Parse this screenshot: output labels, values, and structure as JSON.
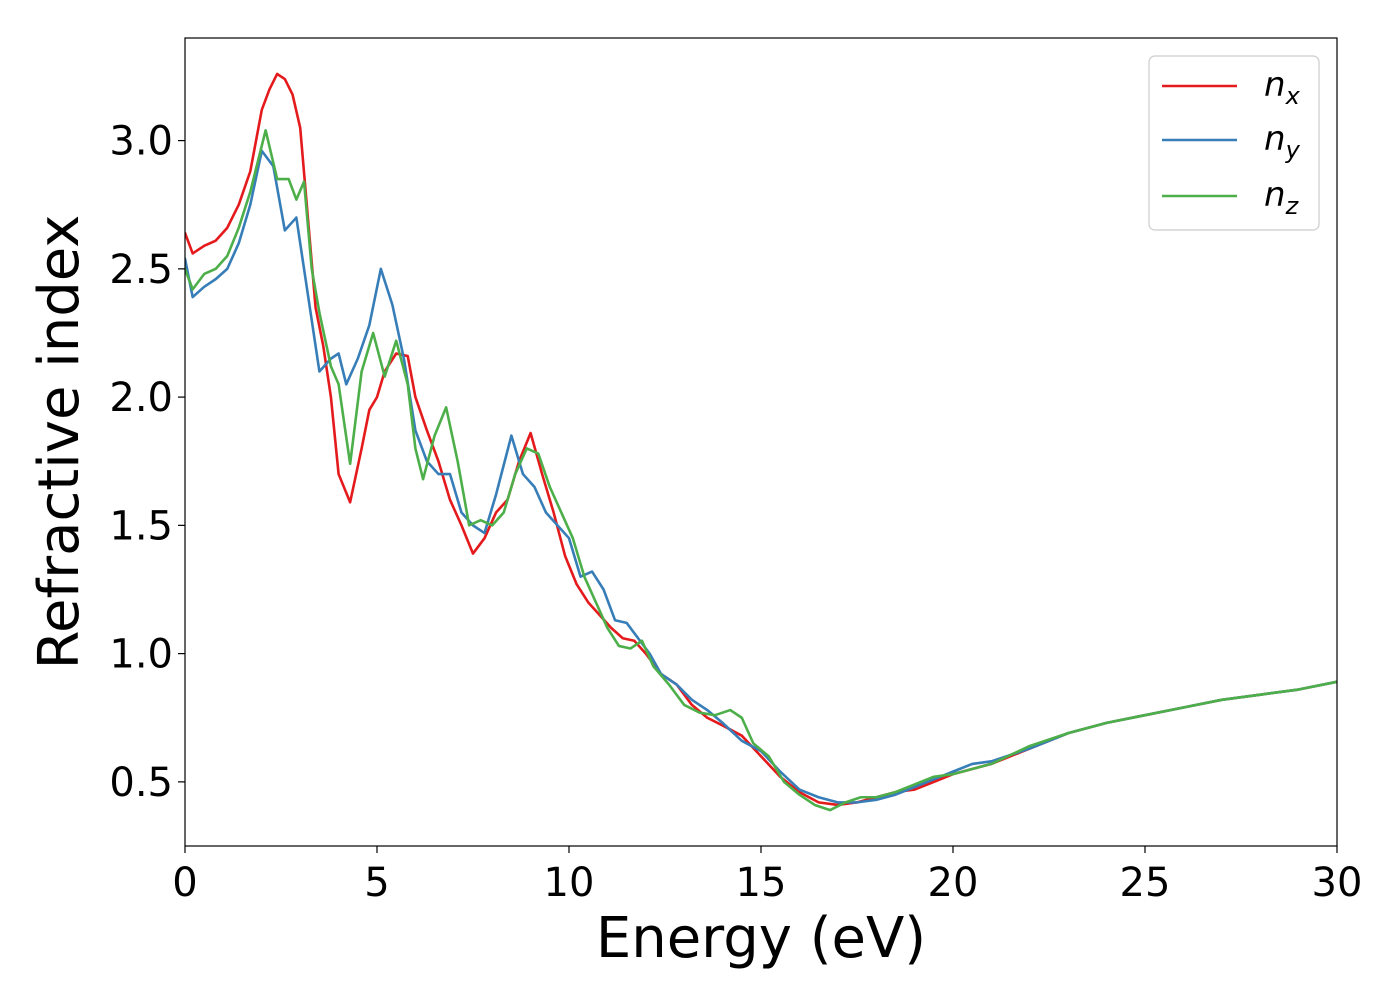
{
  "chart_data": {
    "type": "line",
    "xlabel": "Energy (eV)",
    "ylabel": "Refractive index",
    "xlim": [
      0,
      30
    ],
    "ylim": [
      0.25,
      3.4
    ],
    "xticks": [
      0,
      5,
      10,
      15,
      20,
      25,
      30
    ],
    "xtick_labels": [
      "0",
      "5",
      "10",
      "15",
      "20",
      "25",
      "30"
    ],
    "yticks": [
      0.5,
      1.0,
      1.5,
      2.0,
      2.5,
      3.0
    ],
    "ytick_labels": [
      "0.5",
      "1.0",
      "1.5",
      "2.0",
      "2.5",
      "3.0"
    ],
    "grid": false,
    "legend_position": "top-right",
    "series": [
      {
        "name": "n",
        "subscript": "x",
        "color": "#e41a1c",
        "points": [
          [
            0,
            2.64
          ],
          [
            0.2,
            2.56
          ],
          [
            0.5,
            2.59
          ],
          [
            0.8,
            2.61
          ],
          [
            1.1,
            2.66
          ],
          [
            1.4,
            2.75
          ],
          [
            1.7,
            2.88
          ],
          [
            2.0,
            3.12
          ],
          [
            2.2,
            3.2
          ],
          [
            2.4,
            3.26
          ],
          [
            2.6,
            3.24
          ],
          [
            2.8,
            3.18
          ],
          [
            3.0,
            3.05
          ],
          [
            3.2,
            2.7
          ],
          [
            3.4,
            2.35
          ],
          [
            3.6,
            2.2
          ],
          [
            3.8,
            2.0
          ],
          [
            4.0,
            1.7
          ],
          [
            4.3,
            1.59
          ],
          [
            4.6,
            1.8
          ],
          [
            4.8,
            1.95
          ],
          [
            5.0,
            2.0
          ],
          [
            5.2,
            2.1
          ],
          [
            5.5,
            2.17
          ],
          [
            5.8,
            2.16
          ],
          [
            6.0,
            2.0
          ],
          [
            6.3,
            1.87
          ],
          [
            6.6,
            1.75
          ],
          [
            6.9,
            1.6
          ],
          [
            7.2,
            1.5
          ],
          [
            7.5,
            1.39
          ],
          [
            7.8,
            1.45
          ],
          [
            8.1,
            1.55
          ],
          [
            8.4,
            1.6
          ],
          [
            8.7,
            1.75
          ],
          [
            9.0,
            1.86
          ],
          [
            9.3,
            1.7
          ],
          [
            9.6,
            1.55
          ],
          [
            9.9,
            1.38
          ],
          [
            10.2,
            1.27
          ],
          [
            10.5,
            1.2
          ],
          [
            10.8,
            1.15
          ],
          [
            11.1,
            1.1
          ],
          [
            11.4,
            1.06
          ],
          [
            11.7,
            1.05
          ],
          [
            12.0,
            1.0
          ],
          [
            12.4,
            0.92
          ],
          [
            12.8,
            0.88
          ],
          [
            13.2,
            0.8
          ],
          [
            13.6,
            0.75
          ],
          [
            14.0,
            0.72
          ],
          [
            14.5,
            0.68
          ],
          [
            15.0,
            0.6
          ],
          [
            15.5,
            0.52
          ],
          [
            16.0,
            0.46
          ],
          [
            16.5,
            0.42
          ],
          [
            17.0,
            0.41
          ],
          [
            17.5,
            0.42
          ],
          [
            18.0,
            0.44
          ],
          [
            18.5,
            0.46
          ],
          [
            19.0,
            0.47
          ],
          [
            19.5,
            0.5
          ],
          [
            20.0,
            0.53
          ],
          [
            20.5,
            0.55
          ],
          [
            21.0,
            0.57
          ],
          [
            22.0,
            0.63
          ],
          [
            23.0,
            0.69
          ],
          [
            24.0,
            0.73
          ],
          [
            25.0,
            0.76
          ],
          [
            26.0,
            0.79
          ],
          [
            27.0,
            0.82
          ],
          [
            28.0,
            0.84
          ],
          [
            29.0,
            0.86
          ],
          [
            30.0,
            0.89
          ]
        ]
      },
      {
        "name": "n",
        "subscript": "y",
        "color": "#377eb8",
        "points": [
          [
            0,
            2.54
          ],
          [
            0.2,
            2.39
          ],
          [
            0.5,
            2.43
          ],
          [
            0.8,
            2.46
          ],
          [
            1.1,
            2.5
          ],
          [
            1.4,
            2.6
          ],
          [
            1.7,
            2.75
          ],
          [
            2.0,
            2.96
          ],
          [
            2.3,
            2.9
          ],
          [
            2.6,
            2.65
          ],
          [
            2.9,
            2.7
          ],
          [
            3.2,
            2.4
          ],
          [
            3.5,
            2.1
          ],
          [
            3.8,
            2.15
          ],
          [
            4.0,
            2.17
          ],
          [
            4.2,
            2.05
          ],
          [
            4.5,
            2.15
          ],
          [
            4.8,
            2.28
          ],
          [
            5.1,
            2.5
          ],
          [
            5.4,
            2.36
          ],
          [
            5.7,
            2.15
          ],
          [
            6.0,
            1.87
          ],
          [
            6.3,
            1.75
          ],
          [
            6.6,
            1.7
          ],
          [
            6.9,
            1.7
          ],
          [
            7.2,
            1.55
          ],
          [
            7.5,
            1.5
          ],
          [
            7.8,
            1.47
          ],
          [
            8.1,
            1.62
          ],
          [
            8.5,
            1.85
          ],
          [
            8.8,
            1.7
          ],
          [
            9.1,
            1.65
          ],
          [
            9.4,
            1.55
          ],
          [
            9.7,
            1.5
          ],
          [
            10.0,
            1.45
          ],
          [
            10.3,
            1.3
          ],
          [
            10.6,
            1.32
          ],
          [
            10.9,
            1.25
          ],
          [
            11.2,
            1.13
          ],
          [
            11.5,
            1.12
          ],
          [
            11.8,
            1.06
          ],
          [
            12.1,
            1.0
          ],
          [
            12.4,
            0.92
          ],
          [
            12.8,
            0.88
          ],
          [
            13.2,
            0.82
          ],
          [
            13.6,
            0.78
          ],
          [
            14.0,
            0.73
          ],
          [
            14.5,
            0.66
          ],
          [
            15.0,
            0.62
          ],
          [
            15.5,
            0.54
          ],
          [
            16.0,
            0.47
          ],
          [
            16.5,
            0.44
          ],
          [
            17.0,
            0.42
          ],
          [
            17.5,
            0.42
          ],
          [
            18.0,
            0.43
          ],
          [
            18.5,
            0.45
          ],
          [
            19.0,
            0.48
          ],
          [
            19.5,
            0.51
          ],
          [
            20.0,
            0.54
          ],
          [
            20.5,
            0.57
          ],
          [
            21.0,
            0.58
          ],
          [
            22.0,
            0.63
          ],
          [
            23.0,
            0.69
          ],
          [
            24.0,
            0.73
          ],
          [
            25.0,
            0.76
          ],
          [
            26.0,
            0.79
          ],
          [
            27.0,
            0.82
          ],
          [
            28.0,
            0.84
          ],
          [
            29.0,
            0.86
          ],
          [
            30.0,
            0.89
          ]
        ]
      },
      {
        "name": "n",
        "subscript": "z",
        "color": "#4daf4a",
        "points": [
          [
            0,
            2.5
          ],
          [
            0.2,
            2.42
          ],
          [
            0.5,
            2.48
          ],
          [
            0.8,
            2.5
          ],
          [
            1.1,
            2.55
          ],
          [
            1.4,
            2.66
          ],
          [
            1.7,
            2.8
          ],
          [
            2.1,
            3.04
          ],
          [
            2.4,
            2.85
          ],
          [
            2.7,
            2.85
          ],
          [
            2.9,
            2.77
          ],
          [
            3.1,
            2.84
          ],
          [
            3.3,
            2.5
          ],
          [
            3.5,
            2.33
          ],
          [
            3.8,
            2.12
          ],
          [
            4.0,
            2.05
          ],
          [
            4.3,
            1.74
          ],
          [
            4.6,
            2.1
          ],
          [
            4.9,
            2.25
          ],
          [
            5.2,
            2.08
          ],
          [
            5.5,
            2.22
          ],
          [
            5.8,
            2.05
          ],
          [
            6.0,
            1.8
          ],
          [
            6.2,
            1.68
          ],
          [
            6.5,
            1.85
          ],
          [
            6.8,
            1.96
          ],
          [
            7.1,
            1.75
          ],
          [
            7.4,
            1.5
          ],
          [
            7.7,
            1.52
          ],
          [
            8.0,
            1.5
          ],
          [
            8.3,
            1.55
          ],
          [
            8.6,
            1.7
          ],
          [
            8.9,
            1.8
          ],
          [
            9.2,
            1.78
          ],
          [
            9.5,
            1.65
          ],
          [
            9.8,
            1.55
          ],
          [
            10.1,
            1.45
          ],
          [
            10.4,
            1.3
          ],
          [
            10.7,
            1.2
          ],
          [
            11.0,
            1.1
          ],
          [
            11.3,
            1.03
          ],
          [
            11.6,
            1.02
          ],
          [
            11.9,
            1.05
          ],
          [
            12.2,
            0.95
          ],
          [
            12.6,
            0.88
          ],
          [
            13.0,
            0.8
          ],
          [
            13.4,
            0.77
          ],
          [
            13.8,
            0.76
          ],
          [
            14.2,
            0.78
          ],
          [
            14.5,
            0.75
          ],
          [
            14.8,
            0.65
          ],
          [
            15.2,
            0.6
          ],
          [
            15.6,
            0.5
          ],
          [
            16.0,
            0.45
          ],
          [
            16.4,
            0.41
          ],
          [
            16.8,
            0.39
          ],
          [
            17.2,
            0.42
          ],
          [
            17.6,
            0.44
          ],
          [
            18.0,
            0.44
          ],
          [
            18.5,
            0.46
          ],
          [
            19.0,
            0.49
          ],
          [
            19.5,
            0.52
          ],
          [
            20.0,
            0.53
          ],
          [
            20.5,
            0.55
          ],
          [
            21.0,
            0.57
          ],
          [
            22.0,
            0.64
          ],
          [
            23.0,
            0.69
          ],
          [
            24.0,
            0.73
          ],
          [
            25.0,
            0.76
          ],
          [
            26.0,
            0.79
          ],
          [
            27.0,
            0.82
          ],
          [
            28.0,
            0.84
          ],
          [
            29.0,
            0.86
          ],
          [
            30.0,
            0.89
          ]
        ]
      }
    ]
  }
}
